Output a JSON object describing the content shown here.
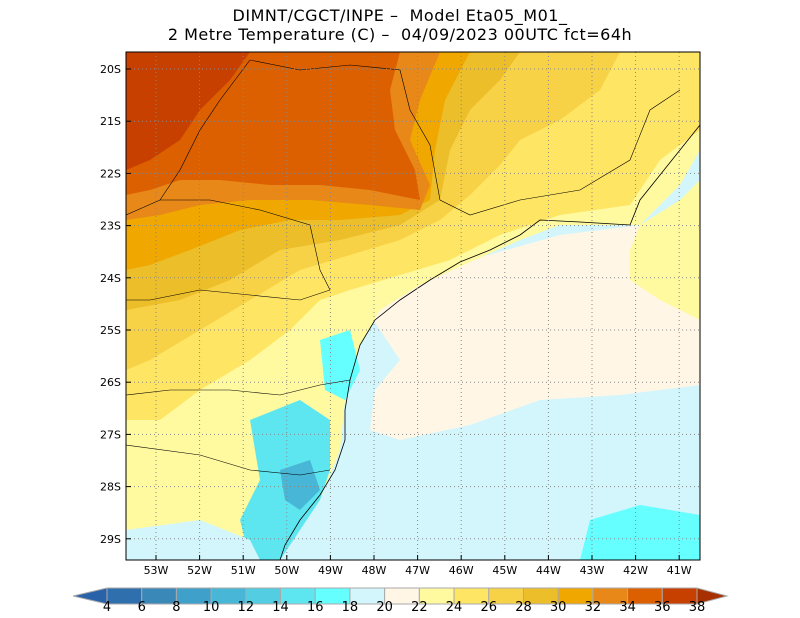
{
  "title": {
    "line1": "DIMNT/CGCT/INPE –  Model Eta05_M01_",
    "line2": "2 Metre Temperature (C) –  04/09/2023 00UTC fct=64h"
  },
  "map": {
    "variable": "2 Metre Temperature",
    "units": "C",
    "lat_labels": [
      "20S",
      "21S",
      "22S",
      "23S",
      "24S",
      "25S",
      "26S",
      "27S",
      "28S",
      "29S"
    ],
    "lon_labels": [
      "53W",
      "52W",
      "51W",
      "50W",
      "49W",
      "48W",
      "47W",
      "46W",
      "45W",
      "44W",
      "43W",
      "42W",
      "41W"
    ]
  },
  "colorbar": {
    "labels": [
      "4",
      "6",
      "8",
      "10",
      "12",
      "14",
      "16",
      "18",
      "20",
      "22",
      "24",
      "26",
      "28",
      "30",
      "32",
      "34",
      "36",
      "38"
    ],
    "colors": [
      "#2f6fad",
      "#3a88b8",
      "#3fa0c9",
      "#48b6d6",
      "#52cde1",
      "#5ee6f0",
      "#66ffff",
      "#d3f5fc",
      "#fff6e6",
      "#fffaa0",
      "#ffe564",
      "#f8d246",
      "#ecbe2a",
      "#f0a800",
      "#e88818",
      "#dc6000",
      "#c84000"
    ],
    "under_color": "#2a62aa",
    "over_color": "#a83000"
  }
}
